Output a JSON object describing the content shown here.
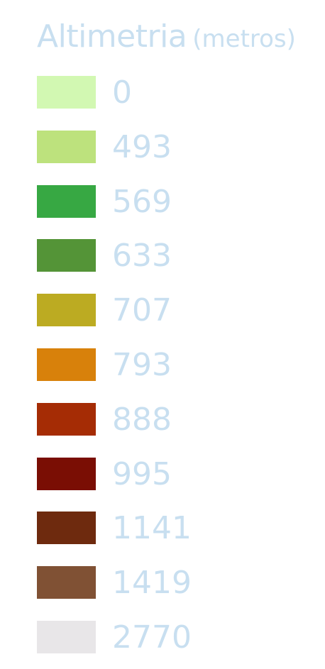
{
  "legend": {
    "title": "Altimetria",
    "unit": "(metros)",
    "items": [
      {
        "label": "0",
        "color": "#d2f8b2"
      },
      {
        "label": "493",
        "color": "#bde27d"
      },
      {
        "label": "569",
        "color": "#37a843"
      },
      {
        "label": "633",
        "color": "#549437"
      },
      {
        "label": "707",
        "color": "#bcab22"
      },
      {
        "label": "793",
        "color": "#d8810b"
      },
      {
        "label": "888",
        "color": "#a52c05"
      },
      {
        "label": "995",
        "color": "#7a0e04"
      },
      {
        "label": "1141",
        "color": "#6e2a0e"
      },
      {
        "label": "1419",
        "color": "#805134"
      },
      {
        "label": "2770",
        "color": "#e8e6e8"
      }
    ]
  }
}
